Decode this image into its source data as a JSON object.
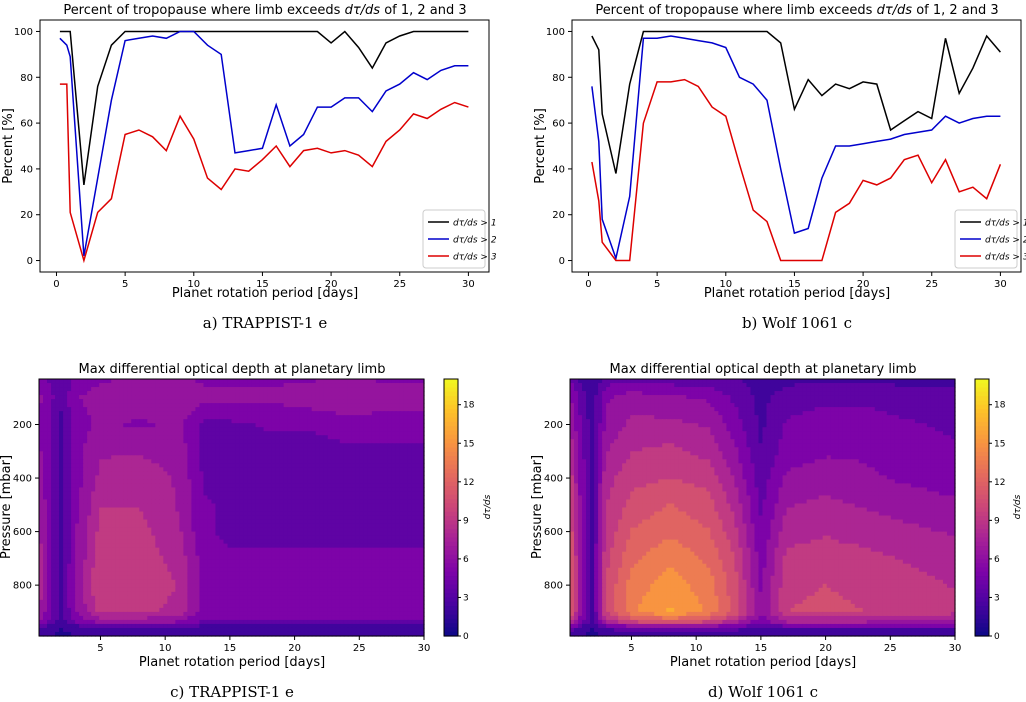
{
  "panels": [
    {
      "caption": "a) TRAPPIST-1 e"
    },
    {
      "caption": "b) Wolf 1061 c"
    },
    {
      "caption": "c) TRAPPIST-1 e"
    },
    {
      "caption": "d) Wolf 1061 c"
    }
  ],
  "chart_data": [
    {
      "type": "line",
      "title": "Percent of tropopause where limb exceeds dτ/ds of 1, 2 and 3",
      "title_prefix": "Percent of tropopause where limb exceeds",
      "title_suffix": "of 1, 2 and 3",
      "xlabel": "Planet rotation period [days]",
      "ylabel": "Percent [%]",
      "xlim": [
        -1.2,
        31.5
      ],
      "ylim": [
        -5,
        105
      ],
      "xticks": [
        0,
        5,
        10,
        15,
        20,
        25,
        30
      ],
      "yticks": [
        0,
        20,
        40,
        60,
        80,
        100
      ],
      "legend_position": "lower-right",
      "grid": false,
      "x": [
        0.25,
        0.75,
        1,
        2,
        3,
        4,
        5,
        6,
        7,
        8,
        9,
        10,
        11,
        12,
        13,
        14,
        15,
        16,
        17,
        18,
        19,
        20,
        21,
        22,
        23,
        24,
        25,
        26,
        27,
        28,
        29,
        30
      ],
      "series": [
        {
          "name": "dτ/ds > 1",
          "color": "#000000",
          "values": [
            100,
            100,
            100,
            33,
            76,
            94,
            100,
            100,
            100,
            100,
            100,
            100,
            100,
            100,
            100,
            100,
            100,
            100,
            100,
            100,
            100,
            95,
            100,
            93,
            84,
            95,
            98,
            100,
            100,
            100,
            100,
            100
          ]
        },
        {
          "name": "dτ/ds > 2",
          "color": "#0000cc",
          "values": [
            97,
            94,
            89,
            2,
            36,
            70,
            96,
            97,
            98,
            97,
            100,
            100,
            94,
            90,
            47,
            48,
            49,
            68,
            50,
            55,
            67,
            67,
            71,
            71,
            65,
            74,
            77,
            82,
            79,
            83,
            85,
            85
          ]
        },
        {
          "name": "dτ/ds > 3",
          "color": "#dd0000",
          "values": [
            77,
            77,
            21,
            0,
            21,
            27,
            55,
            57,
            54,
            48,
            63,
            53,
            36,
            31,
            40,
            39,
            44,
            50,
            41,
            48,
            49,
            47,
            48,
            46,
            41,
            52,
            57,
            64,
            62,
            66,
            69,
            67
          ]
        }
      ]
    },
    {
      "type": "line",
      "title": "Percent of tropopause where limb exceeds dτ/ds of 1, 2 and 3",
      "title_prefix": "Percent of tropopause where limb exceeds",
      "title_suffix": "of 1, 2 and 3",
      "xlabel": "Planet rotation period [days]",
      "ylabel": "Percent [%]",
      "xlim": [
        -1.2,
        31.5
      ],
      "ylim": [
        -5,
        105
      ],
      "xticks": [
        0,
        5,
        10,
        15,
        20,
        25,
        30
      ],
      "yticks": [
        0,
        20,
        40,
        60,
        80,
        100
      ],
      "legend_position": "lower-right",
      "grid": false,
      "x": [
        0.25,
        0.75,
        1,
        2,
        3,
        4,
        5,
        6,
        7,
        8,
        9,
        10,
        11,
        12,
        13,
        14,
        15,
        16,
        17,
        18,
        19,
        20,
        21,
        22,
        23,
        24,
        25,
        26,
        27,
        28,
        29,
        30
      ],
      "series": [
        {
          "name": "dτ/ds > 1",
          "color": "#000000",
          "values": [
            98,
            92,
            64,
            38,
            77,
            100,
            100,
            100,
            100,
            100,
            100,
            100,
            100,
            100,
            100,
            95,
            66,
            79,
            72,
            77,
            75,
            78,
            77,
            57,
            61,
            65,
            62,
            97,
            73,
            84,
            98,
            91
          ]
        },
        {
          "name": "dτ/ds > 2",
          "color": "#0000cc",
          "values": [
            76,
            52,
            18,
            1,
            28,
            97,
            97,
            98,
            97,
            96,
            95,
            93,
            80,
            77,
            70,
            40,
            12,
            14,
            36,
            50,
            50,
            51,
            52,
            53,
            55,
            56,
            57,
            63,
            60,
            62,
            63,
            63
          ]
        },
        {
          "name": "dτ/ds > 3",
          "color": "#dd0000",
          "values": [
            43,
            26,
            8,
            0,
            0,
            60,
            78,
            78,
            79,
            76,
            67,
            63,
            42,
            22,
            17,
            0,
            0,
            0,
            0,
            21,
            25,
            35,
            33,
            36,
            44,
            46,
            34,
            44,
            30,
            32,
            27,
            42
          ]
        }
      ]
    },
    {
      "type": "heatmap",
      "subtype": "filled-contour",
      "title": "Max differential optical depth at planetary limb",
      "xlabel": "Planet rotation period [days]",
      "ylabel": "Pressure [mbar]",
      "colorbar_label": "dτ/ds",
      "colormap": "plasma",
      "xlim": [
        0.25,
        30
      ],
      "ylim": [
        990,
        30
      ],
      "clim": [
        0,
        20
      ],
      "xticks": [
        5,
        10,
        15,
        20,
        25,
        30
      ],
      "yticks": [
        200,
        400,
        600,
        800
      ],
      "colorbar_ticks": [
        0,
        3,
        6,
        9,
        12,
        15,
        18
      ],
      "x": [
        0.25,
        1,
        2,
        3,
        5,
        8,
        11,
        13,
        15,
        18,
        21,
        24,
        27,
        30
      ],
      "y": [
        30,
        100,
        200,
        300,
        400,
        500,
        600,
        700,
        800,
        900,
        940,
        960,
        990
      ],
      "z": [
        [
          5.0,
          4.0,
          3.0,
          4.5,
          5.5,
          6.0,
          6.0,
          5.5,
          5.5,
          5.5,
          5.5,
          6.0,
          5.5,
          5.5
        ],
        [
          6.0,
          5.0,
          3.0,
          5.5,
          6.5,
          6.5,
          7.0,
          6.0,
          6.0,
          6.0,
          6.5,
          7.0,
          6.5,
          6.5
        ],
        [
          5.5,
          4.5,
          2.5,
          5.0,
          6.0,
          5.5,
          6.0,
          4.0,
          4.0,
          4.5,
          4.5,
          5.0,
          5.0,
          5.0
        ],
        [
          6.0,
          4.5,
          2.5,
          5.0,
          7.0,
          7.0,
          6.5,
          4.0,
          3.5,
          3.5,
          3.5,
          4.0,
          4.0,
          4.0
        ],
        [
          6.5,
          5.0,
          2.5,
          5.0,
          7.5,
          8.0,
          7.0,
          4.0,
          3.5,
          3.5,
          3.5,
          3.5,
          3.5,
          3.5
        ],
        [
          7.0,
          5.0,
          2.5,
          5.0,
          8.5,
          8.5,
          7.0,
          4.5,
          4.0,
          3.5,
          3.5,
          3.5,
          3.5,
          3.5
        ],
        [
          7.5,
          5.0,
          2.5,
          5.5,
          9.0,
          9.0,
          7.5,
          4.5,
          4.0,
          4.0,
          4.0,
          4.0,
          4.0,
          4.0
        ],
        [
          8.0,
          5.0,
          2.5,
          5.5,
          9.5,
          9.5,
          8.0,
          5.0,
          4.5,
          4.5,
          4.5,
          4.5,
          4.5,
          4.5
        ],
        [
          8.0,
          5.0,
          2.5,
          6.0,
          10.0,
          10.0,
          8.5,
          5.0,
          5.0,
          5.0,
          5.0,
          5.0,
          5.0,
          5.0
        ],
        [
          7.5,
          5.0,
          2.5,
          5.5,
          9.0,
          9.0,
          8.0,
          5.0,
          5.0,
          5.0,
          5.0,
          5.0,
          5.0,
          5.0
        ],
        [
          5.0,
          4.0,
          2.0,
          4.0,
          6.0,
          6.0,
          5.5,
          4.0,
          4.0,
          4.0,
          4.0,
          4.0,
          4.0,
          4.0
        ],
        [
          2.5,
          2.0,
          1.5,
          2.0,
          2.5,
          2.5,
          2.5,
          2.0,
          2.0,
          2.0,
          2.0,
          2.0,
          2.0,
          2.0
        ],
        [
          1.5,
          1.5,
          1.0,
          1.5,
          1.5,
          1.5,
          1.5,
          1.5,
          1.5,
          1.5,
          1.5,
          1.5,
          1.5,
          1.5
        ]
      ]
    },
    {
      "type": "heatmap",
      "subtype": "filled-contour",
      "title": "Max differential optical depth at planetary limb",
      "xlabel": "Planet rotation period [days]",
      "ylabel": "Pressure [mbar]",
      "colorbar_label": "dτ/ds",
      "colormap": "plasma",
      "xlim": [
        0.25,
        30
      ],
      "ylim": [
        990,
        30
      ],
      "clim": [
        0,
        20
      ],
      "xticks": [
        5,
        10,
        15,
        20,
        25,
        30
      ],
      "yticks": [
        200,
        400,
        600,
        800
      ],
      "colorbar_ticks": [
        0,
        3,
        6,
        9,
        12,
        15,
        18
      ],
      "x": [
        0.25,
        1,
        2,
        3,
        5,
        8,
        11,
        13,
        15,
        17,
        20,
        23,
        26,
        30
      ],
      "y": [
        30,
        100,
        200,
        300,
        400,
        500,
        600,
        700,
        800,
        900,
        940,
        960,
        990
      ],
      "z": [
        [
          4.0,
          2.5,
          1.5,
          3.5,
          4.0,
          3.5,
          3.5,
          3.0,
          2.0,
          2.5,
          2.5,
          2.5,
          2.5,
          2.5
        ],
        [
          6.0,
          4.0,
          2.0,
          5.5,
          6.5,
          6.0,
          5.5,
          4.0,
          2.5,
          3.5,
          4.0,
          4.0,
          3.5,
          3.5
        ],
        [
          7.0,
          4.5,
          2.0,
          6.0,
          7.5,
          7.5,
          7.0,
          5.0,
          2.5,
          4.5,
          5.0,
          5.0,
          4.5,
          4.0
        ],
        [
          8.5,
          5.0,
          2.5,
          7.0,
          8.5,
          9.0,
          8.0,
          6.0,
          3.0,
          5.0,
          5.5,
          5.5,
          5.0,
          4.5
        ],
        [
          9.5,
          5.5,
          2.5,
          8.0,
          9.5,
          10.0,
          9.5,
          7.0,
          3.5,
          6.0,
          6.5,
          6.0,
          5.5,
          5.0
        ],
        [
          10.5,
          6.0,
          2.5,
          8.5,
          10.5,
          11.5,
          10.5,
          8.0,
          4.0,
          7.0,
          7.5,
          7.0,
          6.5,
          6.0
        ],
        [
          11.0,
          6.0,
          2.5,
          9.0,
          11.5,
          12.5,
          11.5,
          9.0,
          4.5,
          8.0,
          8.5,
          8.0,
          7.5,
          7.0
        ],
        [
          12.0,
          6.5,
          2.5,
          9.5,
          12.5,
          14.0,
          12.5,
          10.0,
          5.0,
          9.0,
          9.0,
          9.0,
          8.5,
          8.0
        ],
        [
          12.5,
          6.5,
          2.5,
          10.0,
          13.5,
          15.0,
          13.5,
          10.5,
          5.5,
          9.5,
          10.0,
          9.5,
          9.0,
          8.5
        ],
        [
          12.0,
          6.5,
          2.5,
          10.0,
          14.0,
          16.0,
          14.0,
          11.0,
          6.0,
          10.0,
          10.5,
          10.0,
          9.5,
          9.0
        ],
        [
          9.0,
          5.0,
          2.0,
          7.0,
          9.5,
          11.0,
          9.5,
          7.5,
          4.5,
          7.0,
          7.0,
          7.0,
          6.5,
          6.5
        ],
        [
          4.0,
          2.5,
          1.5,
          3.0,
          4.0,
          4.5,
          4.0,
          3.5,
          2.5,
          3.0,
          3.0,
          3.0,
          3.0,
          3.0
        ],
        [
          2.0,
          1.5,
          1.0,
          1.5,
          2.0,
          2.0,
          2.0,
          1.5,
          1.5,
          1.5,
          1.5,
          1.5,
          1.5,
          1.5
        ]
      ]
    }
  ]
}
